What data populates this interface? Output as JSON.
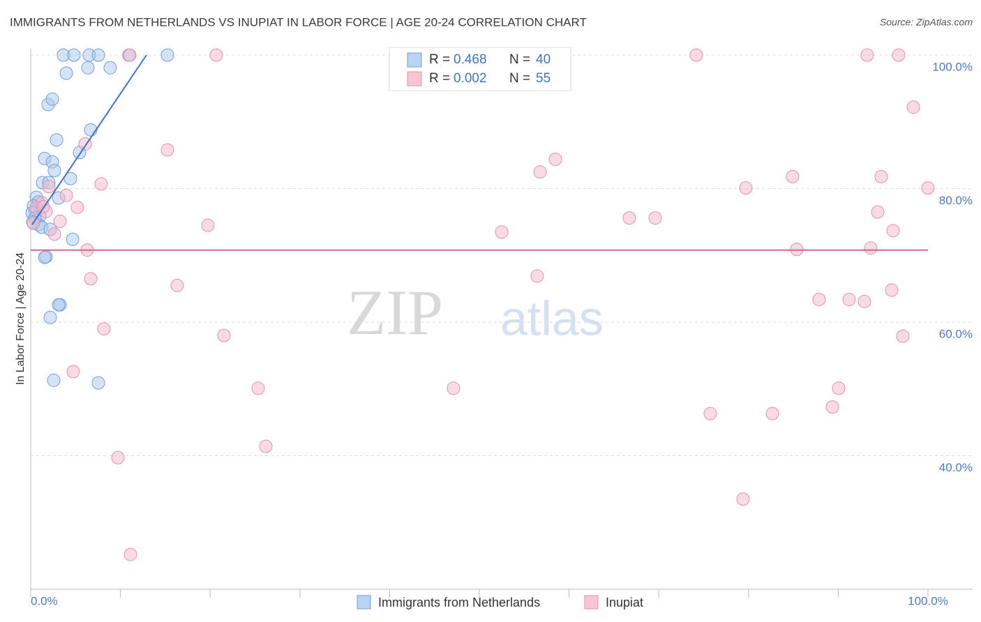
{
  "chart_data": {
    "type": "scatter",
    "title": "IMMIGRANTS FROM NETHERLANDS VS INUPIAT IN LABOR FORCE | AGE 20-24 CORRELATION CHART",
    "source": "Source: ZipAtlas.com",
    "y_label": "In Labor Force | Age 20-24",
    "watermark": [
      "ZIP",
      "atlas"
    ],
    "xlim": [
      0,
      100
    ],
    "ylim": [
      20,
      101
    ],
    "xticks": [
      {
        "value": 0,
        "label": "0.0%"
      },
      {
        "value": 10,
        "label": null
      },
      {
        "value": 20,
        "label": null
      },
      {
        "value": 30,
        "label": null
      },
      {
        "value": 40,
        "label": null
      },
      {
        "value": 50,
        "label": null
      },
      {
        "value": 60,
        "label": null
      },
      {
        "value": 70,
        "label": null
      },
      {
        "value": 80,
        "label": null
      },
      {
        "value": 90,
        "label": null
      },
      {
        "value": 100,
        "label": "100.0%"
      }
    ],
    "yticks": [
      {
        "value": 40,
        "label": "40.0%"
      },
      {
        "value": 60,
        "label": "60.0%"
      },
      {
        "value": 80,
        "label": "80.0%"
      },
      {
        "value": 100,
        "label": "100.0%"
      }
    ],
    "grid": true,
    "stats_labels": {
      "r": "R =",
      "n": "N ="
    },
    "series": [
      {
        "name": "Immigrants from Netherlands",
        "color": "#6f9fd8",
        "fill": "#a9c8f0",
        "line_color": "#3a74d0",
        "r": 0.468,
        "n": 40,
        "trendline": {
          "x": [
            0.16,
            12.9
          ],
          "y": [
            74.6,
            100
          ]
        },
        "x": [
          3.65,
          4.82,
          6.53,
          7.54,
          10.96,
          15.24,
          3.97,
          6.38,
          8.86,
          1.94,
          2.41,
          2.88,
          6.69,
          5.44,
          1.56,
          2.41,
          2.64,
          4.43,
          1.32,
          2.02,
          3.11,
          0.62,
          0.86,
          0.31,
          0.47,
          1.01,
          0.16,
          0.86,
          1.24,
          2.18,
          4.67,
          1.71,
          1.56,
          3.27,
          3.11,
          2.18,
          2.57,
          7.54,
          0.47,
          0.23
        ],
        "values": [
          100,
          100,
          100,
          100,
          100,
          100,
          97.3,
          98.1,
          98.1,
          92.6,
          93.4,
          87.3,
          88.8,
          85.4,
          84.5,
          84.0,
          82.7,
          81.5,
          80.9,
          80.9,
          78.6,
          78.7,
          78.0,
          77.4,
          76.6,
          75.9,
          76.4,
          74.6,
          74.2,
          73.9,
          72.4,
          69.8,
          69.7,
          62.6,
          62.6,
          60.7,
          51.3,
          50.9,
          75.6,
          75.0
        ]
      },
      {
        "name": "Inupiat",
        "color": "#e88fa8",
        "fill": "#f5b8cb",
        "line_color": "#e0608a",
        "r": 0.002,
        "n": 55,
        "trendline": {
          "x": [
            0,
            100
          ],
          "y": [
            70.8,
            70.8
          ]
        },
        "x": [
          20.68,
          74.18,
          93.23,
          96.73,
          11.04,
          98.37,
          6.07,
          15.24,
          58.48,
          56.77,
          84.91,
          94.79,
          7.85,
          2.02,
          79.7,
          100.0,
          3.97,
          1.24,
          5.21,
          94.4,
          1.71,
          3.27,
          19.75,
          66.72,
          69.6,
          52.49,
          96.11,
          2.64,
          6.3,
          85.38,
          93.62,
          6.69,
          56.45,
          16.33,
          87.87,
          91.21,
          92.92,
          95.96,
          8.16,
          21.54,
          97.2,
          4.74,
          25.35,
          47.12,
          90.05,
          75.74,
          82.66,
          89.35,
          26.21,
          9.72,
          79.39,
          11.12,
          0.62,
          1.4,
          0.31
        ],
        "values": [
          100,
          100,
          100,
          100,
          100,
          92.2,
          86.7,
          85.8,
          84.4,
          82.5,
          81.8,
          81.8,
          80.7,
          80.3,
          80.1,
          80.1,
          79.0,
          77.9,
          77.2,
          76.5,
          76.6,
          75.1,
          74.5,
          75.6,
          75.6,
          73.5,
          73.7,
          73.2,
          70.8,
          70.9,
          71.1,
          66.5,
          66.9,
          65.5,
          63.4,
          63.4,
          63.1,
          64.8,
          59.0,
          58.0,
          57.9,
          52.6,
          50.1,
          50.1,
          50.1,
          46.3,
          46.3,
          47.3,
          41.4,
          39.7,
          33.5,
          25.2,
          77.1,
          77.3,
          74.8
        ]
      }
    ]
  }
}
